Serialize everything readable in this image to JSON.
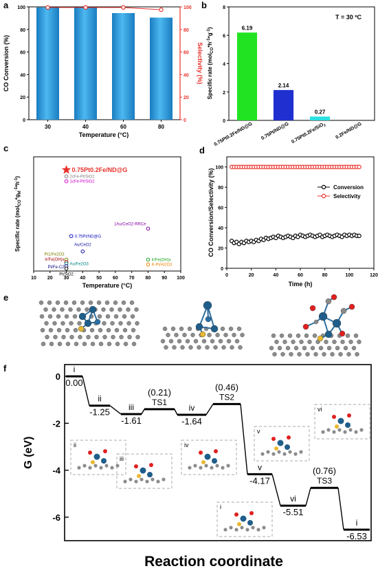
{
  "panel_labels": {
    "a": "a",
    "b": "b",
    "c": "c",
    "d": "d",
    "e": "e",
    "f": "f"
  },
  "colors": {
    "bar_blue": "#2f9fe0",
    "red": "#e8312a",
    "green_bar": "#22e322",
    "navy_bar": "#1f2fd0",
    "cyan_bar": "#2ae0e0",
    "ts_line": "#000000"
  },
  "panel_a": {
    "ylabel": "CO Conversion (%)",
    "y2label": "Selectivity (%)",
    "xlabel": "Temperature (°C)",
    "yticks": [
      "0",
      "20",
      "40",
      "60",
      "80",
      "100"
    ],
    "y2ticks": [
      "0",
      "20",
      "40",
      "60",
      "80",
      "100"
    ]
  },
  "panel_b": {
    "ylabel": "Specific rate (mol",
    "ylabel_sub1": "CO",
    "ylabel_mid": "*h",
    "ylabel_sup": "-1",
    "ylabel_mid2": "*g",
    "ylabel_sup2": "-1",
    "ylabel_end": ")",
    "annotation": "T = 30 ºC",
    "yticks": [
      "0",
      "2",
      "4",
      "6",
      "8"
    ]
  },
  "panel_c": {
    "ylabel": "Specific rate (mol",
    "ylabel_sub1": "CO",
    "ylabel_mid": "*g",
    "ylabel_sub2": "M",
    "ylabel_sup1": "-1",
    "ylabel_mid2": "*h",
    "ylabel_sup2": "-1",
    "ylabel_end": ")",
    "xlabel": "Temperature (°C)",
    "xticks": [
      "10",
      "20",
      "30",
      "40",
      "50",
      "60",
      "70",
      "80",
      "90",
      "100"
    ]
  },
  "panel_d": {
    "ylabel": "CO Conversion/Selectivity (%)",
    "xlabel": "Time (h)",
    "yticks": [
      "0",
      "20",
      "40",
      "60",
      "80",
      "100"
    ],
    "xticks": [
      "0",
      "20",
      "40",
      "60",
      "80",
      "100",
      "120"
    ],
    "legend": [
      "Conversion",
      "Selectivity"
    ]
  },
  "panel_f": {
    "ylabel": "G (eV)",
    "xlabel": "Reaction coordinate",
    "yticks": [
      "0",
      "-2",
      "-4",
      "-6"
    ]
  },
  "chart_data": [
    {
      "type": "bar",
      "panel": "a",
      "categories": [
        "30",
        "40",
        "60",
        "80"
      ],
      "series": [
        {
          "name": "CO Conversion",
          "values": [
            99.5,
            99.5,
            94.5,
            90.5
          ]
        },
        {
          "name": "Selectivity",
          "values": [
            99.5,
            99.5,
            99.5,
            97.5
          ],
          "kind": "line",
          "axis": "right"
        }
      ],
      "ylim": [
        0,
        100
      ],
      "y2lim": [
        0,
        100
      ]
    },
    {
      "type": "bar",
      "panel": "b",
      "categories": [
        "0.75Pt0.2Fe/ND@G",
        "0.75Pt/ND@G",
        "0.75Pt0.2Fe/SiO2",
        "0.2Fe/ND@G"
      ],
      "values": [
        6.19,
        2.14,
        0.27,
        0
      ],
      "labels": [
        "6.19",
        "2.14",
        "0.27",
        ""
      ],
      "ylim": [
        0,
        8
      ]
    },
    {
      "type": "scatter",
      "panel": "c",
      "xlim": [
        10,
        100
      ],
      "ylim": [
        0,
        7
      ],
      "points": [
        {
          "label": "0.75Pt0.2Fe/ND@G",
          "x": 30,
          "y": 6.2,
          "color": "#e8312a",
          "marker": "star"
        },
        {
          "label": "2cFe-Pt/SiO2",
          "x": 30,
          "y": 5.8,
          "color": "#808080",
          "marker": "circle"
        },
        {
          "label": "1cFe-Pt/SiO2",
          "x": 30,
          "y": 5.5,
          "color": "#d000d0",
          "marker": "circle"
        },
        {
          "label": "1Au/CeO2-RRCe",
          "x": 80,
          "y": 2.6,
          "color": "#8000a0",
          "marker": "circle"
        },
        {
          "label": "0.75Pt/ND@G",
          "x": 33,
          "y": 2.14,
          "color": "#1010c0",
          "marker": "circle"
        },
        {
          "label": "Au/CeO2",
          "x": 40,
          "y": 1.2,
          "color": "#1010a0",
          "marker": "circle"
        },
        {
          "label": "Pt1/Fe2O3",
          "x": 30,
          "y": 0.7,
          "color": "#808000",
          "marker": "circle"
        },
        {
          "label": "Ir/Fe(OH)x",
          "x": 30,
          "y": 0.55,
          "color": "#a00000",
          "marker": "circle"
        },
        {
          "label": "Au/Fe2O3",
          "x": 30,
          "y": 0.45,
          "color": "#008080",
          "marker": "circle"
        },
        {
          "label": "Pt/Fe-C2",
          "x": 30,
          "y": 0.3,
          "color": "#000080",
          "marker": "circle"
        },
        {
          "label": "Pt/SiO2",
          "x": 30,
          "y": 0.15,
          "color": "#000000",
          "marker": "circle"
        },
        {
          "label": "Ir/Fe(OH)x",
          "x": 80,
          "y": 0.7,
          "color": "#20a020",
          "marker": "circle"
        },
        {
          "label": "K-Pt/Al2O3",
          "x": 80,
          "y": 0.4,
          "color": "#f08000",
          "marker": "circle"
        }
      ]
    },
    {
      "type": "scatter",
      "panel": "d",
      "xlim": [
        0,
        120
      ],
      "ylim": [
        0,
        110
      ],
      "series": [
        {
          "name": "Conversion",
          "color": "#000000",
          "x": [
            4,
            6,
            8,
            10,
            12,
            14,
            16,
            18,
            20,
            22,
            24,
            26,
            28,
            30,
            32,
            34,
            36,
            38,
            40,
            42,
            44,
            46,
            48,
            50,
            52,
            54,
            56,
            58,
            60,
            62,
            64,
            66,
            68,
            70,
            72,
            74,
            76,
            78,
            80,
            82,
            84,
            86,
            88,
            90,
            92,
            94,
            96,
            98,
            100,
            102,
            104,
            106,
            108
          ],
          "y": [
            27,
            25,
            26,
            24,
            26,
            25,
            27,
            26,
            27,
            26,
            28,
            27,
            29,
            28,
            30,
            29,
            30,
            31,
            30,
            32,
            31,
            30,
            31,
            32,
            31,
            30,
            32,
            31,
            33,
            32,
            31,
            32,
            33,
            32,
            31,
            32,
            33,
            31,
            32,
            33,
            32,
            31,
            32,
            33,
            32,
            31,
            33,
            32,
            33,
            32,
            33,
            32,
            32
          ]
        },
        {
          "name": "Selectivity",
          "color": "#e8312a",
          "x": [
            4,
            6,
            8,
            10,
            12,
            14,
            16,
            18,
            20,
            22,
            24,
            26,
            28,
            30,
            32,
            34,
            36,
            38,
            40,
            42,
            44,
            46,
            48,
            50,
            52,
            54,
            56,
            58,
            60,
            62,
            64,
            66,
            68,
            70,
            72,
            74,
            76,
            78,
            80,
            82,
            84,
            86,
            88,
            90,
            92,
            94,
            96,
            98,
            100,
            102,
            104,
            106,
            108
          ],
          "y": [
            100,
            100,
            100,
            100,
            100,
            100,
            100,
            100,
            100,
            100,
            100,
            100,
            100,
            100,
            100,
            100,
            100,
            100,
            100,
            100,
            100,
            100,
            100,
            100,
            100,
            100,
            100,
            100,
            100,
            100,
            100,
            100,
            100,
            100,
            100,
            100,
            100,
            100,
            100,
            100,
            100,
            100,
            100,
            100,
            100,
            100,
            100,
            100,
            100,
            100,
            100,
            100,
            100
          ]
        }
      ]
    },
    {
      "type": "line",
      "panel": "f",
      "ylim": [
        -7,
        0.5
      ],
      "levels": [
        {
          "roman": "i",
          "value": "0.00",
          "y": 0.0,
          "ts": false
        },
        {
          "roman": "ii",
          "value": "-1.25",
          "y": -1.25,
          "ts": false
        },
        {
          "roman": "iii",
          "value": "-1.61",
          "y": -1.61,
          "ts": false
        },
        {
          "roman": "TS1",
          "value": "(0.21)",
          "y": -1.4,
          "ts": true
        },
        {
          "roman": "iv",
          "value": "-1.64",
          "y": -1.64,
          "ts": false
        },
        {
          "roman": "TS2",
          "value": "(0.46)",
          "y": -1.18,
          "ts": true
        },
        {
          "roman": "v",
          "value": "-4.17",
          "y": -4.17,
          "ts": false
        },
        {
          "roman": "vi",
          "value": "-5.51",
          "y": -5.51,
          "ts": false
        },
        {
          "roman": "TS3",
          "value": "(0.76)",
          "y": -4.75,
          "ts": true
        },
        {
          "roman": "i",
          "value": "-6.53",
          "y": -6.53,
          "ts": false
        }
      ],
      "inset_labels": [
        "ii",
        "iii",
        "iv",
        "v",
        "vi",
        "i"
      ]
    }
  ]
}
